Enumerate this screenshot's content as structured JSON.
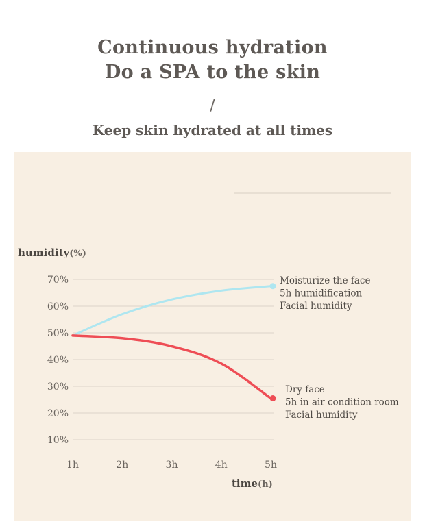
{
  "header": {
    "title_line1": "Continuous hydration",
    "title_line2": "Do a SPA to the skin",
    "divider": "/",
    "subtitle": "Keep skin hydrated at all times"
  },
  "chart_data": {
    "type": "line",
    "ylabel": "humidity",
    "ylabel_unit": "(%)",
    "xlabel": "time",
    "xlabel_unit": "(h)",
    "categories": [
      "1h",
      "2h",
      "3h",
      "4h",
      "5h"
    ],
    "y_ticks": [
      "10%",
      "20%",
      "30%",
      "40%",
      "50%",
      "60%",
      "70%"
    ],
    "ylim": [
      10,
      70
    ],
    "grid": true,
    "series": [
      {
        "name": "Moisturize the face",
        "color": "#aee6f0",
        "x": [
          1,
          2,
          3,
          4,
          5
        ],
        "values": [
          49,
          57,
          62.5,
          65.8,
          67.5
        ],
        "annotation": [
          "Moisturize the face",
          "5h humidification",
          "Facial humidity"
        ]
      },
      {
        "name": "Dry face",
        "color": "#ee4d55",
        "x": [
          1,
          2,
          3,
          4,
          5
        ],
        "values": [
          49,
          48,
          45,
          38.5,
          25.5
        ],
        "annotation": [
          "Dry face",
          "5h in air condition room",
          "Facial humidity"
        ]
      }
    ]
  }
}
